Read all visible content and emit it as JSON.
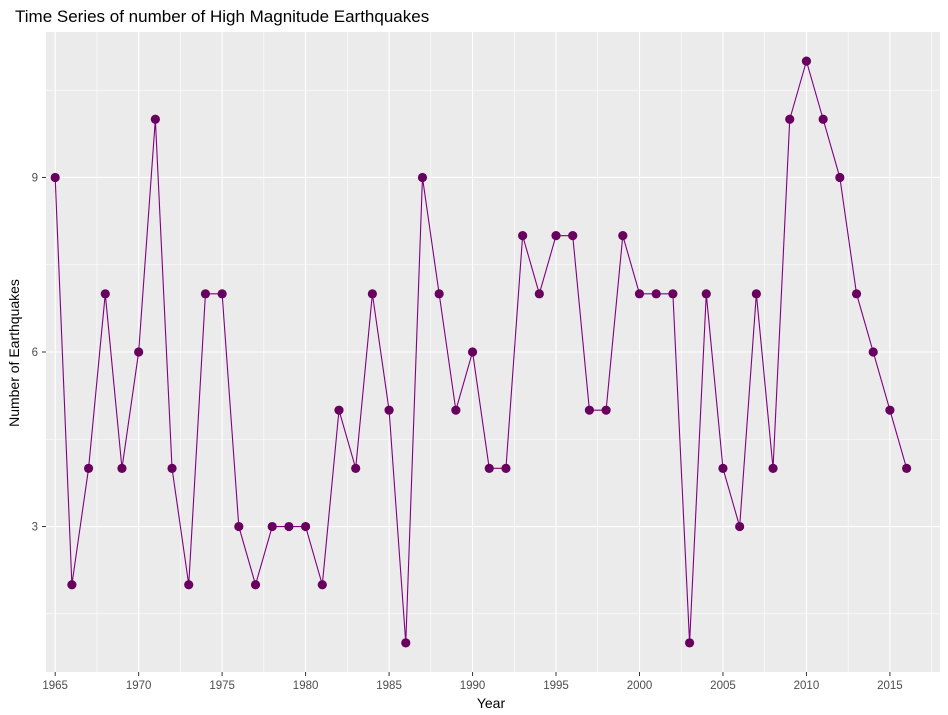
{
  "chart_data": {
    "type": "line",
    "title": "Time Series of number of High Magnitude Earthquakes",
    "xlabel": "Year",
    "ylabel": "Number of Earthquakes",
    "x": [
      1965,
      1966,
      1967,
      1968,
      1969,
      1970,
      1971,
      1972,
      1973,
      1974,
      1975,
      1976,
      1977,
      1978,
      1979,
      1980,
      1981,
      1982,
      1983,
      1984,
      1985,
      1986,
      1987,
      1988,
      1989,
      1990,
      1991,
      1992,
      1993,
      1994,
      1995,
      1996,
      1997,
      1998,
      1999,
      2000,
      2001,
      2002,
      2003,
      2004,
      2005,
      2006,
      2007,
      2008,
      2009,
      2010,
      2011,
      2012,
      2013,
      2014,
      2015,
      2016
    ],
    "series": [
      {
        "values": [
          9,
          2,
          4,
          7,
          4,
          6,
          10,
          4,
          2,
          7,
          7,
          3,
          2,
          3,
          3,
          3,
          2,
          5,
          4,
          7,
          5,
          1,
          9,
          7,
          5,
          6,
          4,
          4,
          8,
          7,
          8,
          8,
          5,
          5,
          8,
          7,
          7,
          7,
          1,
          7,
          4,
          3,
          7,
          4,
          10,
          11,
          10,
          9,
          7,
          6,
          5,
          4
        ]
      }
    ],
    "xlim": [
      1964.45,
      2018.0
    ],
    "ylim": [
      0.5,
      11.5
    ],
    "x_ticks": [
      1965,
      1970,
      1975,
      1980,
      1985,
      1990,
      1995,
      2000,
      2005,
      2010,
      2015
    ],
    "x_tick_labels": [
      "1965",
      "1970",
      "1975",
      "1980",
      "1985",
      "1990",
      "1995",
      "2000",
      "2005",
      "2010",
      "2015"
    ],
    "y_ticks": [
      3,
      6,
      9
    ],
    "y_tick_labels": [
      "3",
      "6",
      "9"
    ],
    "grid": true,
    "legend": "none",
    "colors": {
      "panel_background": "#ebebeb",
      "grid_major": "#ffffff",
      "line": "#800080",
      "point": "#68005e"
    }
  }
}
